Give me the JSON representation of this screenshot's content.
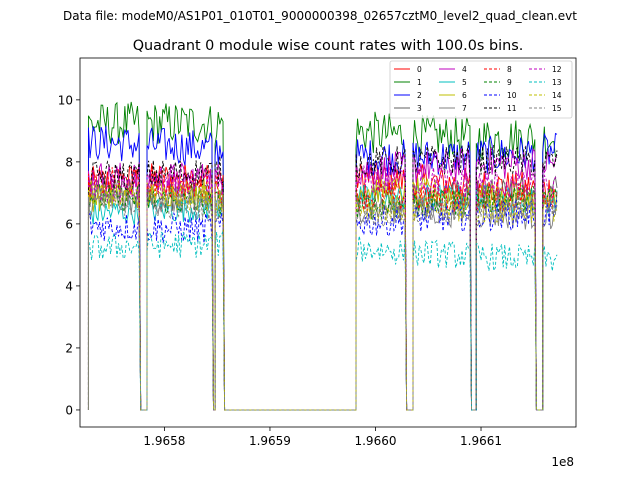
{
  "figure": {
    "suptitle": "Data file: modeM0/AS1P01_010T01_9000000398_02657cztM0_level2_quad_clean.evt"
  },
  "chart_data": {
    "type": "line",
    "title": "Quadrant 0 module wise count rates with 100.0s bins.",
    "xlabel": "",
    "ylabel": "",
    "x_offset_label": "1e8",
    "xlim": [
      1.96572,
      1.96619
    ],
    "ylim": [
      -0.55,
      11.35
    ],
    "xticks": [
      1.9658,
      1.9659,
      1.966,
      1.9661
    ],
    "xtick_labels": [
      "1.9658",
      "1.9659",
      "1.9660",
      "1.9661"
    ],
    "yticks": [
      0,
      2,
      4,
      6,
      8,
      10
    ],
    "ytick_labels": [
      "0",
      "2",
      "4",
      "6",
      "8",
      "10"
    ],
    "legend_position": "top-right",
    "legend_columns": 4,
    "data_summary": {
      "segments_with_counts": [
        [
          1.965728,
          1.965777
        ],
        [
          1.965782,
          1.965845
        ],
        [
          1.965847,
          1.965856
        ],
        [
          1.96598,
          1.966029
        ],
        [
          1.966034,
          1.96609
        ],
        [
          1.966095,
          1.966152
        ],
        [
          1.966157,
          1.966173
        ]
      ],
      "baseline_zero_between_segments": true
    },
    "series": [
      {
        "name": "0",
        "color": "#ff0000",
        "dash": "solid",
        "level": 7.3,
        "amp": 0.55
      },
      {
        "name": "1",
        "color": "#008000",
        "dash": "solid",
        "level": 9.0,
        "amp": 0.7
      },
      {
        "name": "2",
        "color": "#0000ff",
        "dash": "solid",
        "level": 8.4,
        "amp": 0.6
      },
      {
        "name": "3",
        "color": "#606060",
        "dash": "solid",
        "level": 7.0,
        "amp": 0.5
      },
      {
        "name": "4",
        "color": "#bf00bf",
        "dash": "solid",
        "level": 7.7,
        "amp": 0.55
      },
      {
        "name": "5",
        "color": "#00bfbf",
        "dash": "solid",
        "level": 6.6,
        "amp": 0.45
      },
      {
        "name": "6",
        "color": "#bfbf00",
        "dash": "solid",
        "level": 6.9,
        "amp": 0.45
      },
      {
        "name": "7",
        "color": "#808080",
        "dash": "solid",
        "level": 6.5,
        "amp": 0.45
      },
      {
        "name": "8",
        "color": "#ff0000",
        "dash": "dashed",
        "level": 7.1,
        "amp": 0.5
      },
      {
        "name": "9",
        "color": "#008000",
        "dash": "dashed",
        "level": 6.8,
        "amp": 0.45
      },
      {
        "name": "10",
        "color": "#0000ff",
        "dash": "dashed",
        "level": 6.1,
        "amp": 0.5
      },
      {
        "name": "11",
        "color": "#000000",
        "dash": "dashed",
        "level": 7.8,
        "amp": 0.5
      },
      {
        "name": "12",
        "color": "#bf00bf",
        "dash": "dashed",
        "level": 7.2,
        "amp": 0.5
      },
      {
        "name": "13",
        "color": "#00bfbf",
        "dash": "dashed",
        "level": 5.1,
        "amp": 0.45
      },
      {
        "name": "14",
        "color": "#bfbf00",
        "dash": "dashed",
        "level": 6.7,
        "amp": 0.45
      },
      {
        "name": "15",
        "color": "#808080",
        "dash": "dashed",
        "level": 6.6,
        "amp": 0.45
      }
    ]
  }
}
